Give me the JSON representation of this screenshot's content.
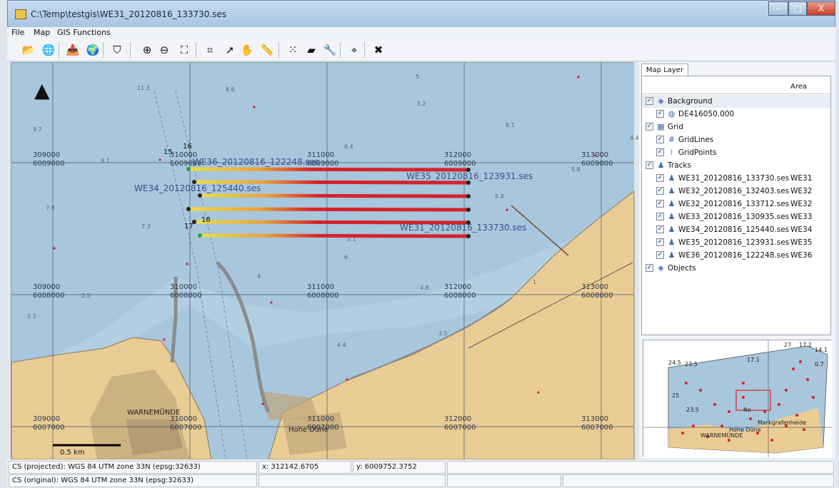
{
  "window": {
    "title": "C:\\Temp\\testgis\\WE31_20120816_133730.ses",
    "close_glyph": "X",
    "minimize_glyph": "–",
    "maximize_glyph": "□"
  },
  "menu": [
    "File",
    "Map",
    "GIS Functions"
  ],
  "toolbar": {
    "buttons": [
      {
        "name": "open-layer-icon",
        "glyph": "📂"
      },
      {
        "name": "open-map-icon",
        "glyph": "🌐"
      },
      {
        "name": "add-layer-icon",
        "glyph": "📥"
      },
      {
        "name": "add-map-icon",
        "glyph": "🌍"
      },
      {
        "name": "print-icon",
        "glyph": "⛉"
      },
      {
        "name": "zoom-in-icon",
        "glyph": "⊕"
      },
      {
        "name": "zoom-out-icon",
        "glyph": "⊖"
      },
      {
        "name": "zoom-extent-icon",
        "glyph": "⛶"
      },
      {
        "name": "select-area-icon",
        "glyph": "⌗"
      },
      {
        "name": "pointer-icon",
        "glyph": "➚"
      },
      {
        "name": "pan-hand-icon",
        "glyph": "✋"
      },
      {
        "name": "measure-ruler-icon",
        "glyph": "📏"
      },
      {
        "name": "color-points-icon",
        "glyph": "⁙"
      },
      {
        "name": "eraser-icon",
        "glyph": "▰"
      },
      {
        "name": "wrench-icon",
        "glyph": "🔧"
      },
      {
        "name": "target-icon",
        "glyph": "⌖"
      },
      {
        "name": "remove-selection-icon",
        "glyph": "✖"
      }
    ]
  },
  "map": {
    "north_glyph": "▲",
    "scale_label": "0.5 km",
    "place_labels": [
      "WARNEMÜNDE",
      "Hohe Düne"
    ],
    "grid_easting": [
      "309000",
      "310000",
      "311000",
      "312000",
      "313000"
    ],
    "grid_northing": [
      "6009000",
      "6008000",
      "6007000"
    ],
    "depths": [
      "11.3",
      "8.6",
      "5",
      "5.2",
      "6.1",
      "9.7",
      "6.4",
      "4.4",
      "9.1",
      "5.8",
      "7.9",
      "5.4",
      "7.3",
      "5.1",
      "2.5",
      "2.2",
      "6",
      "4",
      "4.8",
      "1",
      "3.5",
      "4.4"
    ],
    "point_numbers": [
      "15",
      "16",
      "17",
      "18"
    ],
    "tracks": [
      {
        "label": "WE36_20120816_122248.ses"
      },
      {
        "label": "WE35_20120816_123931.ses"
      },
      {
        "label": "WE34_20120816_125440.ses"
      },
      {
        "label": "WE31_20120816_133730.ses"
      }
    ]
  },
  "side": {
    "tab": "Map Layer",
    "area_header": "Area",
    "layers": [
      {
        "label": "Background",
        "area": "",
        "icon": "◈"
      },
      {
        "label": "DE416050.000",
        "area": "",
        "icon": "◍"
      },
      {
        "label": "Grid",
        "area": "",
        "icon": "▦"
      },
      {
        "label": "GridLines",
        "area": "",
        "icon": "#"
      },
      {
        "label": "GridPoints",
        "area": "",
        "icon": "⁞"
      },
      {
        "label": "Tracks",
        "area": "",
        "icon": "♟"
      },
      {
        "label": "WE31_20120816_133730.ses",
        "area": "WE31",
        "icon": "♟"
      },
      {
        "label": "WE32_20120816_132403.ses",
        "area": "WE32",
        "icon": "♟"
      },
      {
        "label": "WE32_20120816_133712.ses",
        "area": "WE32",
        "icon": "♟"
      },
      {
        "label": "WE33_20120816_130935.ses",
        "area": "WE33",
        "icon": "♟"
      },
      {
        "label": "WE34_20120816_125440.ses",
        "area": "WE34",
        "icon": "♟"
      },
      {
        "label": "WE35_20120816_123931.ses",
        "area": "WE35",
        "icon": "♟"
      },
      {
        "label": "WE36_20120816_122248.ses",
        "area": "WE36",
        "icon": "♟"
      },
      {
        "label": "Objects",
        "area": "",
        "icon": "◈"
      }
    ],
    "check_glyph": "✓",
    "overview_labels": [
      "27",
      "17.2",
      "14.1",
      "24.5",
      "23.5",
      "17.1",
      "0.7",
      "25",
      "23.5",
      "No",
      "Markgrafenheide",
      "Hohe Düne",
      "WARNEMÜNDE"
    ]
  },
  "status": {
    "cs_projected": "CS (projected): WGS 84 UTM zone 33N (epsg:32633)",
    "x": "x: 312142.6705",
    "y": "y: 6009752.3752",
    "cs_original": "CS (original): WGS 84 UTM zone 33N (epsg:32633)"
  },
  "colors": {
    "water": "#a8c6dc",
    "land": "#e9cc94",
    "track_red": "#d4232a",
    "track_orange": "#e8a13a",
    "track_yellow": "#e8df49",
    "label_blue": "#3c4f8f"
  }
}
